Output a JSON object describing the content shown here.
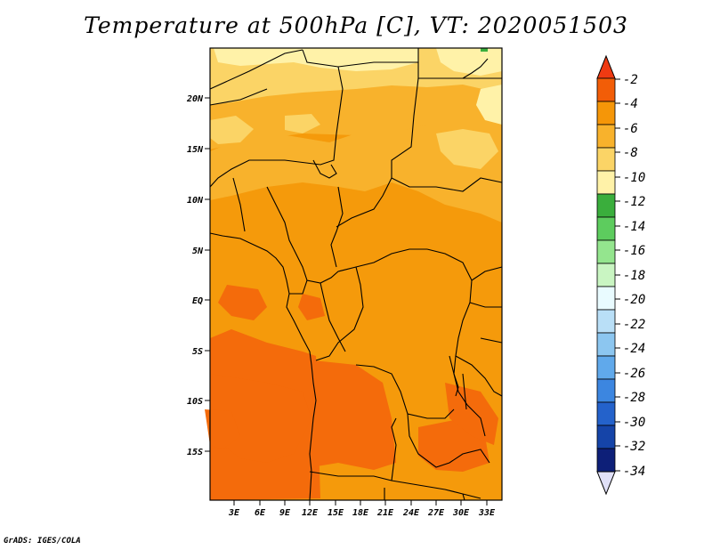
{
  "title": "Temperature at 500hPa [C], VT: 2020051503",
  "credit": "GrADS: IGES/COLA",
  "map": {
    "lat_ticks": [
      "20N",
      "15N",
      "10N",
      "5N",
      "EQ",
      "5S",
      "10S",
      "15S"
    ],
    "lon_ticks": [
      "3E",
      "6E",
      "9E",
      "12E",
      "15E",
      "18E",
      "21E",
      "24E",
      "27E",
      "30E",
      "33E"
    ]
  },
  "colorbar": {
    "labels": [
      "-2",
      "-4",
      "-6",
      "-8",
      "-10",
      "-12",
      "-14",
      "-16",
      "-18",
      "-20",
      "-22",
      "-24",
      "-26",
      "-28",
      "-30",
      "-32",
      "-34"
    ],
    "top_arrow_color": "#ef3a12",
    "bottom_arrow_color": "#e0e0f8",
    "colors": [
      "#f25d07",
      "#f59608",
      "#f8b22c",
      "#fbd466",
      "#fff2a8",
      "#3aae3c",
      "#5dcc5e",
      "#94e58e",
      "#c9f5c2",
      "#e9fbff",
      "#b9dff7",
      "#8cc6f0",
      "#60a9eb",
      "#3c86e0",
      "#2462cb",
      "#1544a8",
      "#0d1f78"
    ]
  },
  "colors": {
    "orange_dark": "#f46b0b",
    "orange": "#f59a0b",
    "orange_light": "#f8b22c",
    "yellow": "#fbd466",
    "pale": "#fff2a8",
    "green": "#3aae3c"
  }
}
